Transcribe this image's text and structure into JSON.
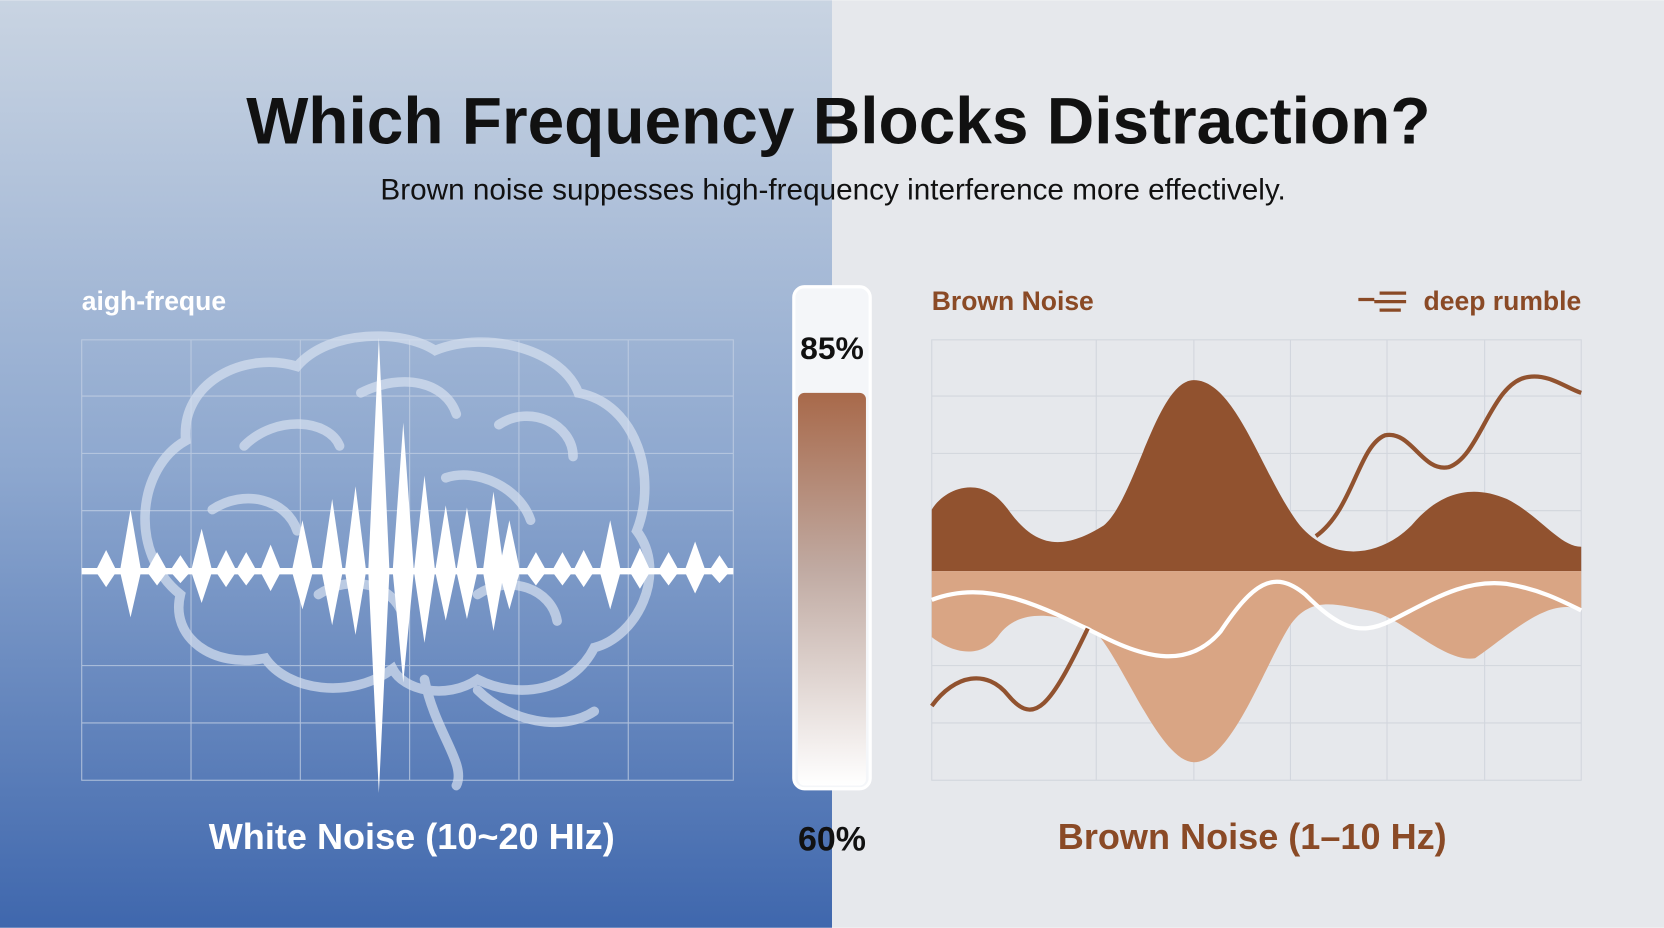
{
  "header": {
    "title": "Which Frequency Blocks Distraction?",
    "subtitle": "Brown noise suppesses high-frequency interference more effectively."
  },
  "left_panel": {
    "label": "aigh-freque",
    "caption": "White Noise (10~20 HIz)"
  },
  "gauge": {
    "top_label": "85%",
    "bottom_label": "60%"
  },
  "right_panel": {
    "label": "Brown Noise",
    "tag": "deep rumble",
    "caption": "Brown Noise (1–10 Hz)"
  }
}
